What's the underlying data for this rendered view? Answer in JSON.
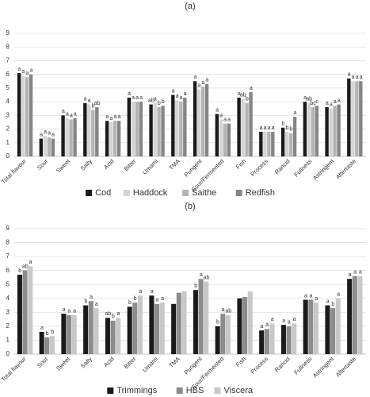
{
  "chart_data": [
    {
      "type": "bar",
      "title": "(a)",
      "legend": "bottom",
      "grid": true,
      "categories": [
        "Total flavour",
        "Sour",
        "Sweet",
        "Salty",
        "Acid",
        "Bitter",
        "Umami",
        "TMA",
        "Pungent",
        "Sour/Fermented",
        "Fish",
        "Process",
        "Rancid",
        "Fullness",
        "Astringent",
        "Aftertaste"
      ],
      "ylim": [
        0,
        9
      ],
      "yticks": [
        0,
        1,
        2,
        3,
        4,
        5,
        6,
        7,
        8,
        9
      ],
      "series": [
        {
          "name": "Cod",
          "color": "#1a1a1a",
          "values": [
            6.1,
            1.3,
            3.0,
            3.9,
            2.6,
            4.3,
            3.8,
            4.5,
            5.5,
            3.1,
            4.3,
            1.8,
            2.1,
            4.0,
            3.6,
            5.7
          ],
          "letters": [
            "a",
            "a",
            "a",
            "a",
            "a",
            "a",
            "ab",
            "a",
            "a",
            "a",
            "a",
            "a",
            "b",
            "a",
            "a",
            "a"
          ]
        },
        {
          "name": "Haddock",
          "color": "#d4d4d4",
          "values": [
            5.9,
            1.5,
            2.8,
            3.8,
            2.5,
            4.0,
            3.9,
            4.1,
            4.9,
            2.7,
            4.2,
            1.8,
            1.8,
            3.9,
            3.5,
            5.5
          ],
          "letters": [
            "a",
            "a",
            "a",
            "a",
            "a",
            "a",
            "a",
            "a",
            "a",
            "a",
            "ab",
            "a",
            "b",
            "ab",
            "a",
            "a"
          ]
        },
        {
          "name": "Saithe",
          "color": "#b4b4b4",
          "values": [
            5.8,
            1.4,
            2.7,
            3.4,
            2.6,
            4.0,
            3.6,
            4.0,
            5.1,
            2.4,
            3.9,
            1.8,
            1.7,
            3.6,
            3.7,
            5.5
          ],
          "letters": [
            "a",
            "a",
            "a",
            "b",
            "a",
            "a",
            "b",
            "a",
            "a",
            "a",
            "b",
            "a",
            "b",
            "bc",
            "a",
            "a"
          ]
        },
        {
          "name": "Redfish",
          "color": "#858585",
          "values": [
            6.0,
            1.3,
            2.8,
            3.6,
            2.6,
            4.0,
            3.7,
            4.3,
            5.3,
            2.4,
            4.7,
            1.8,
            2.9,
            3.7,
            3.8,
            5.5
          ],
          "letters": [
            "a",
            "a",
            "a",
            "ab",
            "a",
            "a",
            "b",
            "a",
            "a",
            "a",
            "a",
            "a",
            "a",
            "c",
            "a",
            "a"
          ]
        }
      ]
    },
    {
      "type": "bar",
      "title": "(b)",
      "legend": "bottom",
      "grid": true,
      "categories": [
        "Total flavour",
        "Sour",
        "Sweet",
        "Salty",
        "Acid",
        "Bitter",
        "Umami",
        "TMA",
        "Pungent",
        "Sour/Fermented",
        "Fish",
        "Process",
        "Rancid",
        "Fullness",
        "Astringent",
        "Aftertaste"
      ],
      "ylim": [
        0,
        9
      ],
      "yticks": [
        0,
        1,
        2,
        3,
        4,
        5,
        6,
        7,
        8,
        9
      ],
      "series": [
        {
          "name": "Trimmings",
          "color": "#1a1a1a",
          "values": [
            5.7,
            1.6,
            2.9,
            3.5,
            2.6,
            3.4,
            4.2,
            3.6,
            4.6,
            2.0,
            4.0,
            1.7,
            2.1,
            3.9,
            3.5,
            5.4
          ],
          "letters": [
            "b",
            "a",
            "a",
            "b",
            "ab",
            "b",
            "a",
            null,
            "b",
            "b",
            null,
            "a",
            "a",
            "a",
            "a",
            "a"
          ]
        },
        {
          "name": "HBS",
          "color": "#8c8c8c",
          "values": [
            6.0,
            1.2,
            2.8,
            3.8,
            2.4,
            3.7,
            3.6,
            4.4,
            5.4,
            2.9,
            4.1,
            1.8,
            2.0,
            3.9,
            3.3,
            5.6
          ],
          "letters": [
            "ab",
            "b",
            "a",
            "a",
            "b",
            "b",
            "a",
            null,
            "a",
            "a",
            null,
            "a",
            "a",
            "a",
            "b",
            "a"
          ]
        },
        {
          "name": "Viscera",
          "color": "#c8c8c8",
          "values": [
            6.3,
            1.3,
            2.8,
            3.3,
            2.6,
            4.2,
            3.7,
            4.5,
            5.2,
            2.8,
            4.5,
            2.2,
            2.2,
            3.7,
            4.0,
            5.6
          ],
          "letters": [
            "a",
            "b",
            "a",
            "a",
            "a",
            "a",
            "a",
            null,
            "ab",
            "ab",
            null,
            "a",
            "a",
            "a",
            "a",
            "a"
          ]
        }
      ]
    }
  ]
}
